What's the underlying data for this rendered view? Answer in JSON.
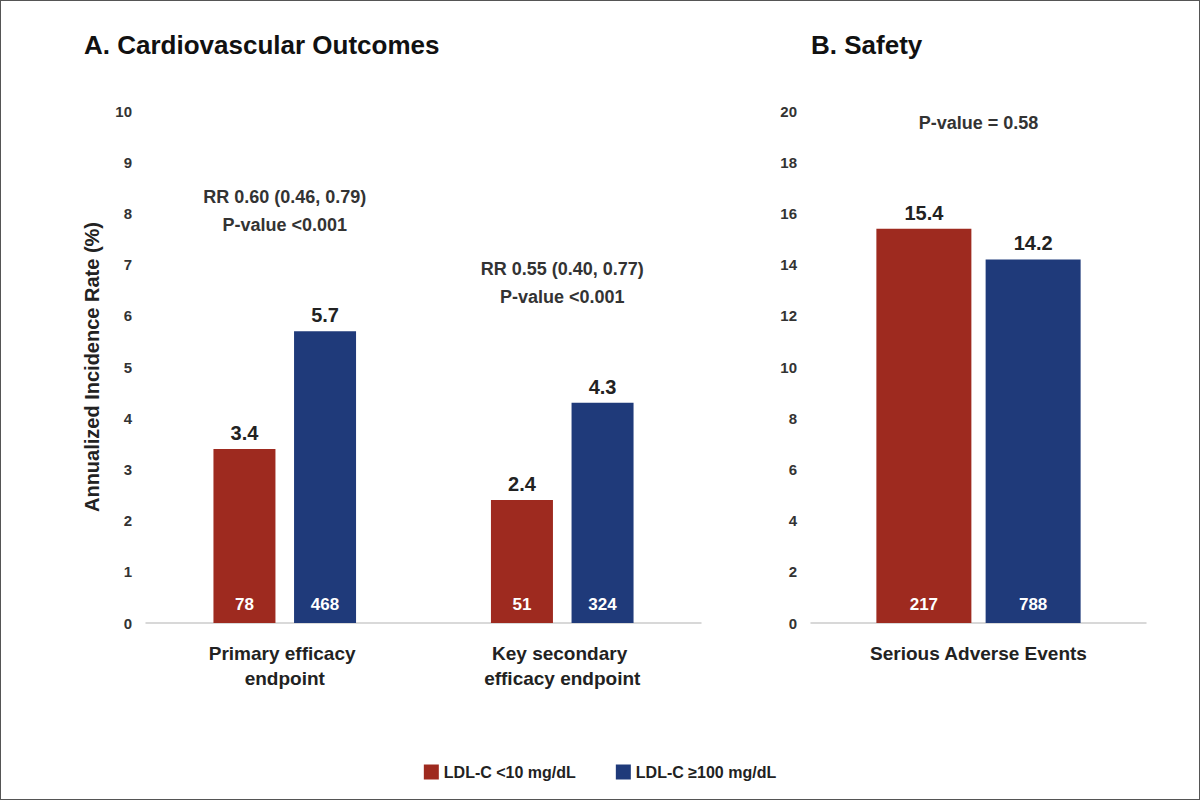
{
  "chart_data": [
    {
      "type": "bar",
      "title": "A. Cardiovascular Outcomes",
      "ylabel": "Annualized Incidence Rate (%)",
      "categories": [
        "Primary efficacy endpoint",
        "Key secondary efficacy endpoint"
      ],
      "series": [
        {
          "name": "LDL-C <10 mg/dL",
          "color": "#9e2a1f",
          "values": [
            3.4,
            2.4
          ],
          "counts": [
            78,
            51
          ]
        },
        {
          "name": "LDL-C ≥100 mg/dL",
          "color": "#1f3a7a",
          "values": [
            5.7,
            4.3
          ],
          "counts": [
            468,
            324
          ]
        }
      ],
      "ylim": [
        0,
        10
      ],
      "yticks": [
        0,
        1,
        2,
        3,
        4,
        5,
        6,
        7,
        8,
        9,
        10
      ],
      "grid": false,
      "data_labels": true,
      "legend": "bottom",
      "annotations": [
        {
          "category": "Primary efficacy endpoint",
          "lines": [
            "RR 0.60 (0.46, 0.79)",
            "P-value <0.001"
          ]
        },
        {
          "category": "Key secondary efficacy endpoint",
          "lines": [
            "RR 0.55 (0.40, 0.77)",
            "P-value <0.001"
          ]
        }
      ]
    },
    {
      "type": "bar",
      "title": "B. Safety",
      "categories": [
        "Serious Adverse Events"
      ],
      "series": [
        {
          "name": "LDL-C <10 mg/dL",
          "color": "#9e2a1f",
          "values": [
            15.4
          ],
          "counts": [
            217
          ]
        },
        {
          "name": "LDL-C ≥100 mg/dL",
          "color": "#1f3a7a",
          "values": [
            14.2
          ],
          "counts": [
            788
          ]
        }
      ],
      "ylim": [
        0,
        20
      ],
      "yticks": [
        0,
        2,
        4,
        6,
        8,
        10,
        12,
        14,
        16,
        18,
        20
      ],
      "grid": false,
      "data_labels": true,
      "annotations": [
        {
          "category": "Serious Adverse Events",
          "lines": [
            "P-value = 0.58"
          ]
        }
      ]
    }
  ]
}
